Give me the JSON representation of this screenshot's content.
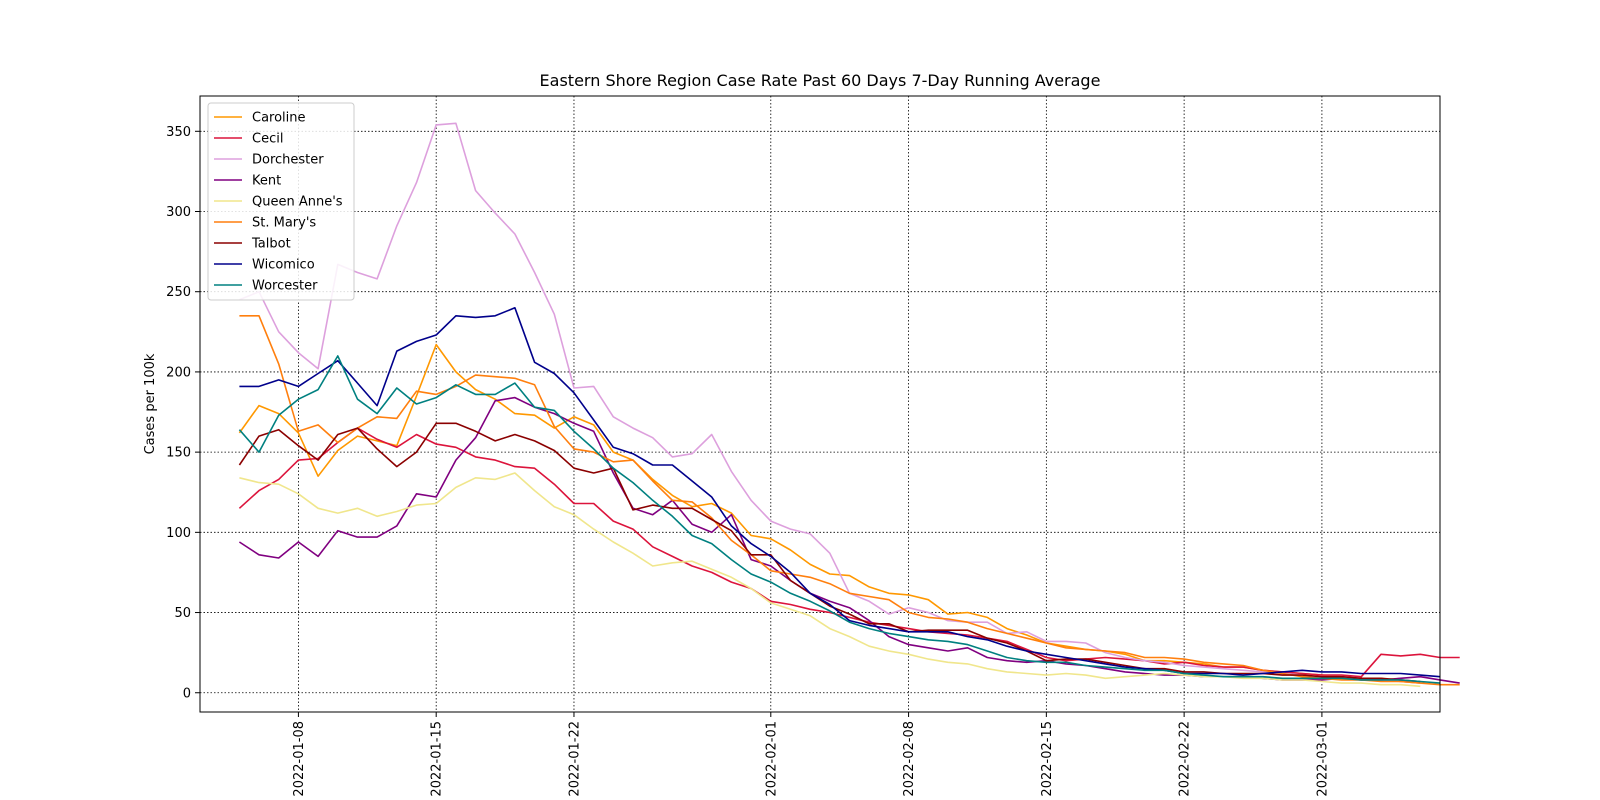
{
  "chart_data": {
    "type": "line",
    "title": "Eastern Shore Region Case Rate  Past 60 Days 7-Day Running Average",
    "xlabel": "",
    "ylabel": "Cases per 100k",
    "x_start": "2022-01-05",
    "x_end": "2022-03-05",
    "xlim": [
      "2022-01-03",
      "2022-03-07"
    ],
    "ylim": [
      -12,
      372
    ],
    "x_ticks": [
      "2022-01-08",
      "2022-01-15",
      "2022-01-22",
      "2022-02-01",
      "2022-02-08",
      "2022-02-15",
      "2022-02-22",
      "2022-03-01"
    ],
    "y_ticks": [
      0,
      50,
      100,
      150,
      200,
      250,
      300,
      350
    ],
    "grid": true,
    "legend_position": "top-left",
    "series": [
      {
        "name": "Caroline",
        "color": "#ff9800",
        "values": [
          162,
          179,
          174,
          162,
          135,
          151,
          160,
          157,
          154,
          185,
          217,
          200,
          189,
          183,
          174,
          173,
          165,
          172,
          167,
          150,
          145,
          133,
          123,
          116,
          118,
          112,
          98,
          96,
          89,
          80,
          74,
          73,
          66,
          62,
          61,
          58,
          49,
          50,
          47,
          40,
          36,
          31,
          29,
          27,
          26,
          24,
          20,
          20,
          19,
          18,
          16,
          16,
          14,
          13,
          12,
          11,
          10,
          9,
          9,
          7,
          6
        ]
      },
      {
        "name": "Cecil",
        "color": "#dc143c",
        "values": [
          115,
          126,
          133,
          145,
          146,
          156,
          165,
          158,
          153,
          161,
          155,
          153,
          147,
          145,
          141,
          140,
          130,
          118,
          118,
          107,
          102,
          91,
          85,
          79,
          75,
          69,
          65,
          57,
          55,
          52,
          50,
          47,
          44,
          42,
          40,
          38,
          37,
          36,
          34,
          32,
          27,
          22,
          20,
          21,
          22,
          21,
          20,
          18,
          19,
          17,
          16,
          16,
          14,
          13,
          12,
          11,
          11,
          10,
          24,
          23,
          24,
          22,
          22
        ]
      },
      {
        "name": "Dorchester",
        "color": "#dda0dd",
        "values": [
          245,
          250,
          225,
          212,
          202,
          267,
          262,
          258,
          291,
          318,
          354,
          355,
          313,
          299,
          286,
          262,
          236,
          190,
          191,
          172,
          165,
          159,
          147,
          149,
          161,
          138,
          120,
          107,
          102,
          99,
          87,
          62,
          57,
          49,
          53,
          50,
          45,
          44,
          44,
          37,
          38,
          32,
          32,
          31,
          25,
          22,
          20,
          19,
          17,
          16,
          15,
          14,
          13,
          12,
          11,
          10,
          10,
          9,
          8,
          7,
          6
        ]
      },
      {
        "name": "Kent",
        "color": "#800080",
        "values": [
          94,
          86,
          84,
          94,
          85,
          101,
          97,
          97,
          104,
          124,
          122,
          145,
          159,
          182,
          184,
          178,
          174,
          168,
          163,
          137,
          115,
          111,
          120,
          105,
          100,
          111,
          83,
          79,
          70,
          62,
          57,
          53,
          45,
          35,
          30,
          28,
          26,
          28,
          22,
          20,
          19,
          20,
          18,
          17,
          15,
          13,
          12,
          11,
          11,
          10,
          10,
          10,
          9,
          8,
          8,
          8,
          9,
          8,
          8,
          9,
          10,
          8,
          6
        ]
      },
      {
        "name": "Queen Anne's",
        "color": "#f0e68c",
        "values": [
          134,
          131,
          130,
          124,
          115,
          112,
          115,
          110,
          113,
          117,
          118,
          128,
          134,
          133,
          137,
          126,
          116,
          111,
          102,
          94,
          87,
          79,
          81,
          82,
          77,
          72,
          65,
          56,
          52,
          48,
          40,
          35,
          29,
          26,
          24,
          21,
          19,
          18,
          15,
          13,
          12,
          11,
          12,
          11,
          9,
          10,
          11,
          12,
          11,
          10,
          10,
          9,
          9,
          8,
          8,
          7,
          6,
          6,
          5,
          5,
          4
        ]
      },
      {
        "name": "St. Mary's",
        "color": "#ff7f0e",
        "values": [
          235,
          235,
          205,
          163,
          167,
          156,
          165,
          172,
          171,
          188,
          186,
          191,
          198,
          197,
          196,
          192,
          166,
          152,
          150,
          144,
          145,
          132,
          120,
          119,
          109,
          95,
          86,
          76,
          74,
          72,
          68,
          62,
          60,
          58,
          50,
          47,
          46,
          44,
          40,
          37,
          34,
          31,
          28,
          27,
          26,
          25,
          22,
          22,
          21,
          19,
          18,
          17,
          14,
          12,
          10,
          9,
          8,
          8,
          7,
          7,
          6,
          5,
          5
        ]
      },
      {
        "name": "Talbot",
        "color": "#8b0000",
        "values": [
          142,
          160,
          164,
          154,
          145,
          161,
          165,
          152,
          141,
          150,
          168,
          168,
          163,
          157,
          161,
          157,
          151,
          140,
          137,
          140,
          114,
          117,
          115,
          115,
          108,
          101,
          86,
          86,
          70,
          62,
          54,
          49,
          43,
          43,
          38,
          39,
          39,
          39,
          34,
          31,
          26,
          20,
          21,
          21,
          19,
          17,
          15,
          15,
          13,
          13,
          12,
          12,
          12,
          11,
          11,
          10,
          10,
          9,
          9,
          8,
          7
        ]
      },
      {
        "name": "Wicomico",
        "color": "#00008b",
        "values": [
          191,
          191,
          195,
          191,
          199,
          207,
          193,
          179,
          213,
          219,
          223,
          235,
          234,
          235,
          240,
          206,
          199,
          187,
          170,
          153,
          149,
          142,
          142,
          132,
          122,
          104,
          93,
          85,
          75,
          62,
          55,
          45,
          42,
          40,
          38,
          38,
          38,
          35,
          33,
          29,
          26,
          24,
          22,
          20,
          18,
          16,
          15,
          14,
          12,
          12,
          12,
          11,
          12,
          13,
          14,
          13,
          13,
          12,
          12,
          12,
          11,
          10
        ]
      },
      {
        "name": "Worcester",
        "color": "#008080",
        "values": [
          164,
          150,
          173,
          183,
          189,
          210,
          183,
          174,
          190,
          180,
          184,
          192,
          186,
          186,
          193,
          178,
          176,
          163,
          152,
          140,
          131,
          120,
          110,
          98,
          93,
          83,
          74,
          69,
          62,
          57,
          51,
          44,
          40,
          37,
          35,
          33,
          32,
          30,
          26,
          22,
          20,
          19,
          19,
          17,
          16,
          15,
          14,
          14,
          12,
          11,
          10,
          10,
          10,
          9,
          9,
          9,
          9,
          8,
          8,
          8,
          7,
          6
        ]
      }
    ]
  }
}
